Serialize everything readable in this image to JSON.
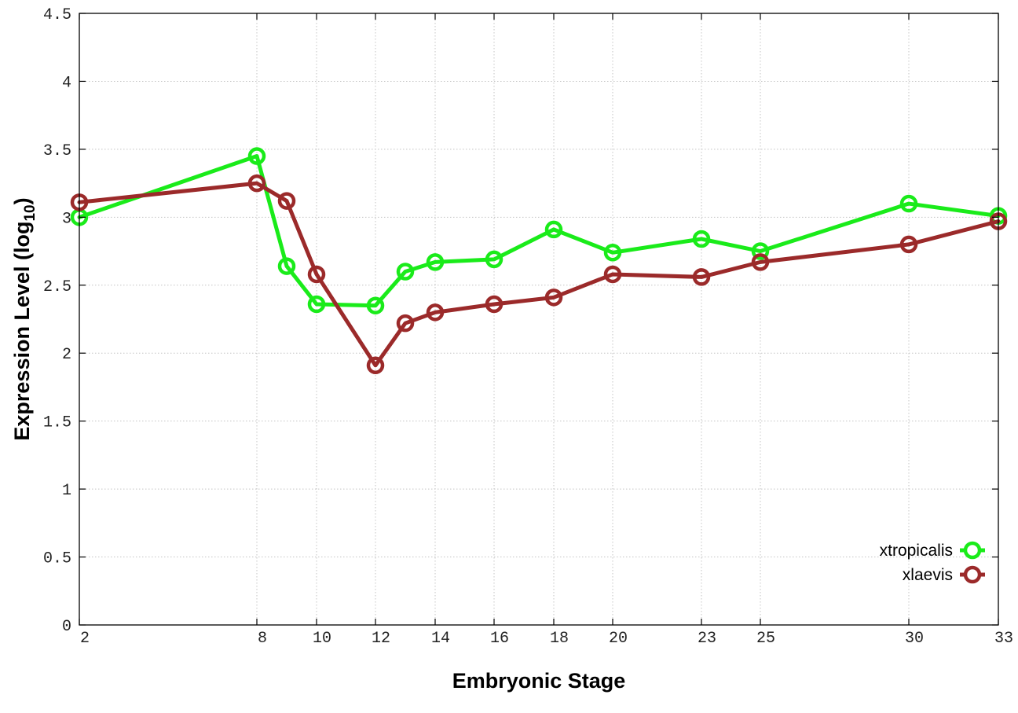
{
  "chart_data": {
    "type": "line",
    "title": "",
    "xlabel": "Embryonic Stage",
    "ylabel": {
      "main": "Expression Level (log",
      "subscript": "10",
      "close": ")"
    },
    "x_scale": "categorical",
    "x": [
      "2",
      "8",
      "9",
      "10",
      "12",
      "13",
      "14",
      "16",
      "18",
      "20",
      "23",
      "25",
      "30",
      "33"
    ],
    "x_tick_labels": [
      "2",
      "8",
      "10",
      "12",
      "14",
      "16",
      "18",
      "20",
      "23",
      "25",
      "30",
      "33"
    ],
    "ylim": [
      0,
      4.5
    ],
    "y_ticks": [
      0,
      0.5,
      1,
      1.5,
      2,
      2.5,
      3,
      3.5,
      4,
      4.5
    ],
    "y_tick_labels": [
      "0",
      "0.5",
      "1",
      "1.5",
      "2",
      "2.5",
      "3",
      "3.5",
      "4",
      "4.5"
    ],
    "grid": true,
    "legend_position": "bottom-right",
    "series": [
      {
        "name": "xtropicalis",
        "color": "#1aeb1a",
        "values": [
          3.0,
          3.45,
          2.64,
          2.36,
          2.35,
          2.6,
          2.67,
          2.69,
          2.91,
          2.74,
          2.84,
          2.75,
          3.1,
          3.01
        ]
      },
      {
        "name": "xlaevis",
        "color": "#9b2a2a",
        "values": [
          3.11,
          3.25,
          3.12,
          2.58,
          1.91,
          2.22,
          2.3,
          2.36,
          2.41,
          2.58,
          2.56,
          2.67,
          2.8,
          2.97
        ]
      }
    ]
  }
}
